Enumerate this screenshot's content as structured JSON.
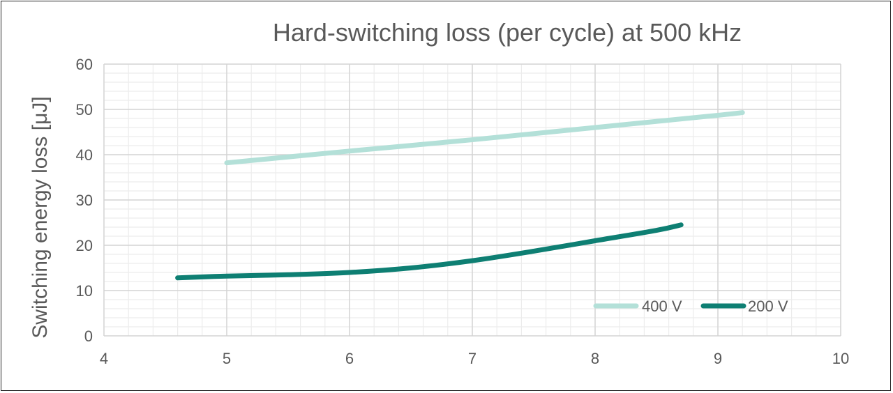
{
  "chart_data": {
    "type": "line",
    "title": "Hard-switching loss (per cycle) at 500 kHz",
    "xlabel": "",
    "ylabel": "Switching energy loss [μJ]",
    "xlim": [
      4,
      10
    ],
    "ylim": [
      0,
      60
    ],
    "x_ticks": [
      "4",
      "5",
      "6",
      "7",
      "8",
      "9",
      "10"
    ],
    "y_ticks": [
      "0",
      "10",
      "20",
      "30",
      "40",
      "50",
      "60"
    ],
    "grid": true,
    "legend_position": "bottom-right",
    "series": [
      {
        "name": "400 V",
        "color": "#b3e0d8",
        "points": [
          [
            5,
            38.2
          ],
          [
            6,
            40.8
          ],
          [
            7,
            43.3
          ],
          [
            8,
            46.0
          ],
          [
            9,
            48.7
          ],
          [
            9.2,
            49.3
          ]
        ]
      },
      {
        "name": "200 V",
        "color": "#0e7f73",
        "points": [
          [
            4.6,
            12.8
          ],
          [
            5,
            13.2
          ],
          [
            5.5,
            13.5
          ],
          [
            6,
            14.0
          ],
          [
            6.5,
            15.0
          ],
          [
            7,
            16.6
          ],
          [
            7.5,
            18.7
          ],
          [
            8,
            21.0
          ],
          [
            8.5,
            23.3
          ],
          [
            8.7,
            24.5
          ]
        ]
      }
    ]
  }
}
